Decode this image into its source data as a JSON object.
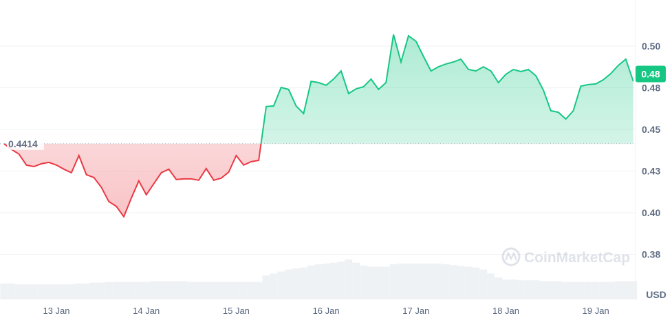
{
  "chart_data": {
    "type": "line",
    "title": "",
    "xlabel": "",
    "ylabel": "USD",
    "y_ticks": [
      "0.50",
      "0.48",
      "0.45",
      "0.43",
      "0.40",
      "0.38"
    ],
    "y_tick_values": [
      0.5,
      0.475,
      0.45,
      0.425,
      0.4,
      0.375
    ],
    "x_ticks": [
      "13 Jan",
      "14 Jan",
      "15 Jan",
      "16 Jan",
      "17 Jan",
      "18 Jan",
      "19 Jan"
    ],
    "ylim": [
      0.365,
      0.52
    ],
    "grid": true,
    "baseline": {
      "label": "0.4414",
      "value": 0.4414
    },
    "current_price": {
      "label": "0.48",
      "value": 0.4789
    },
    "watermark": "CoinMarketCap",
    "colors": {
      "up": "#16c784",
      "down": "#ea3943",
      "axis_text": "#616e85",
      "grid": "#eff2f5"
    },
    "series": [
      {
        "points": [
          [
            "12 Jan 10:00",
            0.4414
          ],
          [
            "12 Jan 12:00",
            0.438
          ],
          [
            "12 Jan 14:00",
            0.4352
          ],
          [
            "12 Jan 16:00",
            0.4286
          ],
          [
            "12 Jan 18:00",
            0.4277
          ],
          [
            "12 Jan 20:00",
            0.4294
          ],
          [
            "12 Jan 22:00",
            0.4302
          ],
          [
            "13 Jan 00:00",
            0.4286
          ],
          [
            "13 Jan 02:00",
            0.4261
          ],
          [
            "13 Jan 04:00",
            0.424
          ],
          [
            "13 Jan 06:00",
            0.4343
          ],
          [
            "13 Jan 08:00",
            0.4228
          ],
          [
            "13 Jan 10:00",
            0.4211
          ],
          [
            "13 Jan 12:00",
            0.4153
          ],
          [
            "13 Jan 14:00",
            0.4067
          ],
          [
            "13 Jan 16:00",
            0.4038
          ],
          [
            "13 Jan 18:00",
            0.3976
          ],
          [
            "13 Jan 20:00",
            0.4087
          ],
          [
            "13 Jan 22:00",
            0.4191
          ],
          [
            "14 Jan 00:00",
            0.4108
          ],
          [
            "14 Jan 02:00",
            0.4174
          ],
          [
            "14 Jan 04:00",
            0.424
          ],
          [
            "14 Jan 06:00",
            0.4261
          ],
          [
            "14 Jan 08:00",
            0.4199
          ],
          [
            "14 Jan 10:00",
            0.4203
          ],
          [
            "14 Jan 12:00",
            0.4203
          ],
          [
            "14 Jan 14:00",
            0.4195
          ],
          [
            "14 Jan 16:00",
            0.4265
          ],
          [
            "14 Jan 18:00",
            0.4195
          ],
          [
            "14 Jan 20:00",
            0.4207
          ],
          [
            "14 Jan 22:00",
            0.4244
          ],
          [
            "15 Jan 00:00",
            0.4343
          ],
          [
            "15 Jan 02:00",
            0.4286
          ],
          [
            "15 Jan 04:00",
            0.4306
          ],
          [
            "15 Jan 06:00",
            0.4314
          ],
          [
            "15 Jan 08:00",
            0.4637
          ],
          [
            "15 Jan 10:00",
            0.4641
          ],
          [
            "15 Jan 12:00",
            0.4752
          ],
          [
            "15 Jan 14:00",
            0.474
          ],
          [
            "15 Jan 16:00",
            0.4641
          ],
          [
            "15 Jan 18:00",
            0.4595
          ],
          [
            "15 Jan 20:00",
            0.4789
          ],
          [
            "15 Jan 22:00",
            0.4781
          ],
          [
            "16 Jan 00:00",
            0.4765
          ],
          [
            "16 Jan 02:00",
            0.4802
          ],
          [
            "16 Jan 04:00",
            0.4851
          ],
          [
            "16 Jan 06:00",
            0.4715
          ],
          [
            "16 Jan 08:00",
            0.4744
          ],
          [
            "16 Jan 10:00",
            0.4756
          ],
          [
            "16 Jan 12:00",
            0.4802
          ],
          [
            "16 Jan 14:00",
            0.474
          ],
          [
            "16 Jan 16:00",
            0.4781
          ],
          [
            "16 Jan 18:00",
            0.507
          ],
          [
            "16 Jan 20:00",
            0.4905
          ],
          [
            "16 Jan 22:00",
            0.5062
          ],
          [
            "17 Jan 00:00",
            0.5029
          ],
          [
            "17 Jan 02:00",
            0.4938
          ],
          [
            "17 Jan 04:00",
            0.4851
          ],
          [
            "17 Jan 06:00",
            0.4876
          ],
          [
            "17 Jan 08:00",
            0.4893
          ],
          [
            "17 Jan 10:00",
            0.4905
          ],
          [
            "17 Jan 12:00",
            0.4922
          ],
          [
            "17 Jan 14:00",
            0.486
          ],
          [
            "17 Jan 16:00",
            0.4851
          ],
          [
            "17 Jan 18:00",
            0.4876
          ],
          [
            "17 Jan 20:00",
            0.4851
          ],
          [
            "17 Jan 22:00",
            0.4781
          ],
          [
            "18 Jan 00:00",
            0.4831
          ],
          [
            "18 Jan 02:00",
            0.486
          ],
          [
            "18 Jan 04:00",
            0.4847
          ],
          [
            "18 Jan 06:00",
            0.486
          ],
          [
            "18 Jan 08:00",
            0.4822
          ],
          [
            "18 Jan 10:00",
            0.4736
          ],
          [
            "18 Jan 12:00",
            0.4612
          ],
          [
            "18 Jan 14:00",
            0.4603
          ],
          [
            "18 Jan 16:00",
            0.4562
          ],
          [
            "18 Jan 18:00",
            0.4612
          ],
          [
            "18 Jan 20:00",
            0.476
          ],
          [
            "18 Jan 22:00",
            0.4769
          ],
          [
            "19 Jan 00:00",
            0.4773
          ],
          [
            "19 Jan 02:00",
            0.4798
          ],
          [
            "19 Jan 04:00",
            0.4835
          ],
          [
            "19 Jan 06:00",
            0.4884
          ],
          [
            "19 Jan 08:00",
            0.4922
          ],
          [
            "19 Jan 10:00",
            0.4789
          ]
        ]
      }
    ],
    "volume_relative": [
      0.4,
      0.4,
      0.38,
      0.38,
      0.38,
      0.38,
      0.38,
      0.38,
      0.38,
      0.38,
      0.4,
      0.4,
      0.42,
      0.42,
      0.44,
      0.44,
      0.44,
      0.44,
      0.44,
      0.44,
      0.46,
      0.46,
      0.46,
      0.46,
      0.46,
      0.44,
      0.44,
      0.44,
      0.44,
      0.44,
      0.44,
      0.44,
      0.44,
      0.44,
      0.44,
      0.6,
      0.65,
      0.7,
      0.75,
      0.78,
      0.8,
      0.85,
      0.88,
      0.9,
      0.92,
      0.95,
      1.0,
      0.92,
      0.85,
      0.82,
      0.82,
      0.82,
      0.88,
      0.9,
      0.9,
      0.9,
      0.9,
      0.9,
      0.9,
      0.88,
      0.86,
      0.84,
      0.82,
      0.8,
      0.75,
      0.65,
      0.55,
      0.5,
      0.5,
      0.48,
      0.48,
      0.48,
      0.46,
      0.46,
      0.46,
      0.44,
      0.44,
      0.44,
      0.44,
      0.44,
      0.44,
      0.44,
      0.46,
      0.46,
      0.46
    ]
  }
}
